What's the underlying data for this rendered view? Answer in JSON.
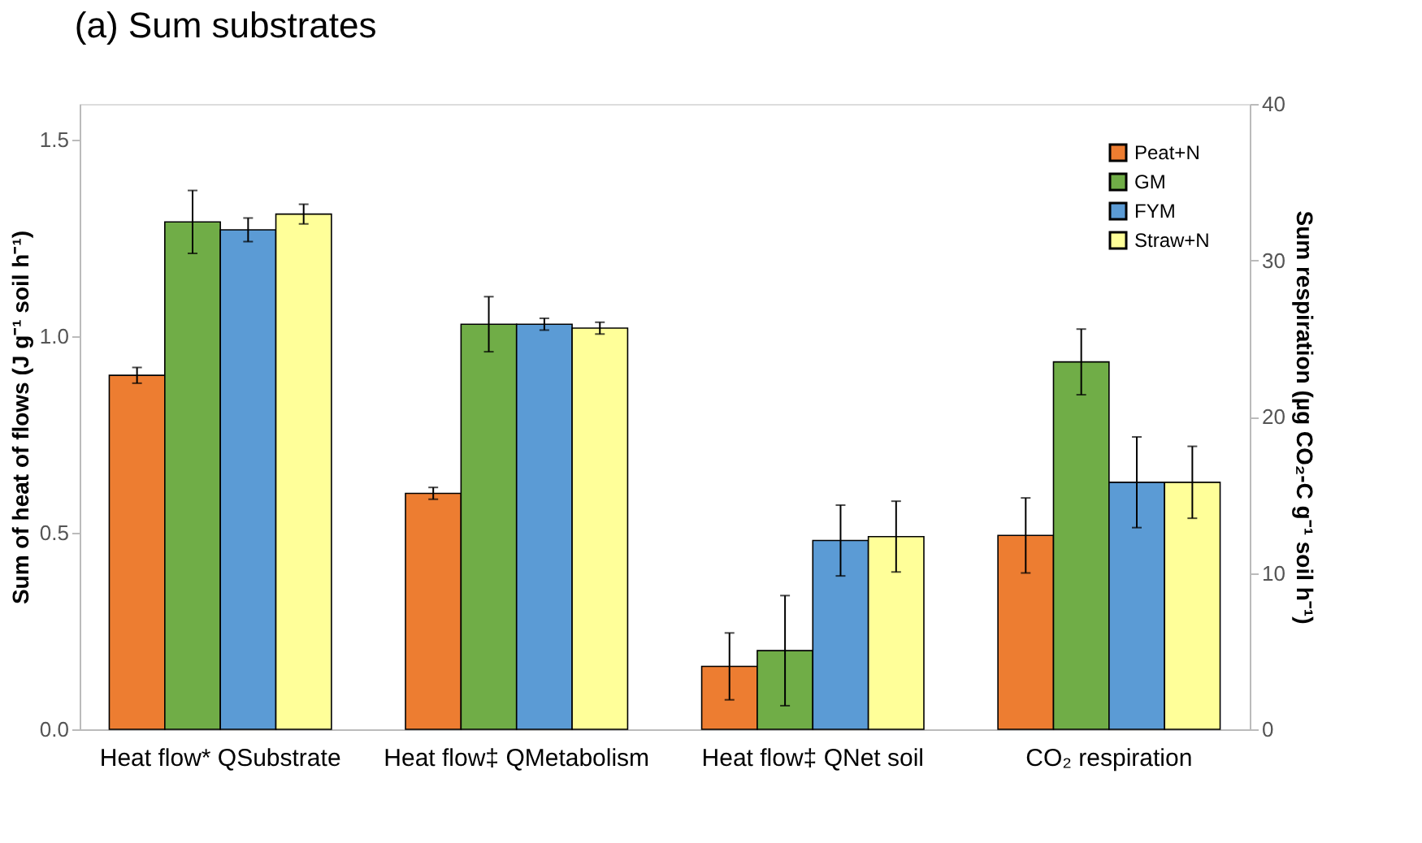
{
  "chart_data": {
    "type": "bar",
    "title": "(a)   Sum substrates",
    "categories": [
      "Heat flow* QSubstrate",
      "Heat flow‡ QMetabolism",
      "Heat flow‡ QNet soil",
      "CO₂ respiration"
    ],
    "ylabel": "Sum of heat of flows (J g⁻¹ soil h⁻¹)",
    "y2label": "Sum respiration (µg CO₂-C g⁻¹ soil h⁻¹)",
    "ylim": [
      0,
      1.59
    ],
    "yticks": [
      {
        "value": 0,
        "label": "0.0"
      },
      0.5,
      {
        "value": 1,
        "label": "1.0"
      },
      1.5
    ],
    "y2lim": [
      0,
      40
    ],
    "y2ticks": [
      0,
      10,
      20,
      30,
      40
    ],
    "series": [
      {
        "name": "Peat+N",
        "color": "#ed7d31",
        "values": [
          0.9,
          0.6,
          0.16,
          null
        ],
        "errors": [
          0.02,
          0.015,
          0.085,
          null
        ]
      },
      {
        "name": "GM",
        "color": "#70ad47",
        "values": [
          1.29,
          1.03,
          0.2,
          null
        ],
        "errors": [
          0.08,
          0.07,
          0.14,
          null
        ]
      },
      {
        "name": "FYM",
        "color": "#5b9bd5",
        "values": [
          1.27,
          1.03,
          0.48,
          null
        ],
        "errors": [
          0.03,
          0.015,
          0.09,
          null
        ]
      },
      {
        "name": "Straw+N",
        "color": "#ffff99",
        "values": [
          1.31,
          1.02,
          0.49,
          null
        ],
        "errors": [
          0.025,
          0.015,
          0.09,
          null
        ]
      },
      {
        "color": "#ed7d31",
        "axis": "y2",
        "values": [
          null,
          null,
          null,
          12.4
        ],
        "errors": [
          null,
          null,
          null,
          2.4
        ]
      },
      {
        "color": "#70ad47",
        "axis": "y2",
        "values": [
          null,
          null,
          null,
          23.5
        ],
        "errors": [
          null,
          null,
          null,
          2.1
        ]
      },
      {
        "color": "#5b9bd5",
        "axis": "y2",
        "values": [
          null,
          null,
          null,
          15.8
        ],
        "errors": [
          null,
          null,
          null,
          2.9
        ]
      },
      {
        "color": "#ffff99",
        "axis": "y2",
        "values": [
          null,
          null,
          null,
          15.8
        ],
        "errors": [
          null,
          null,
          null,
          2.3
        ]
      }
    ],
    "grid": false,
    "legend": "top right"
  }
}
